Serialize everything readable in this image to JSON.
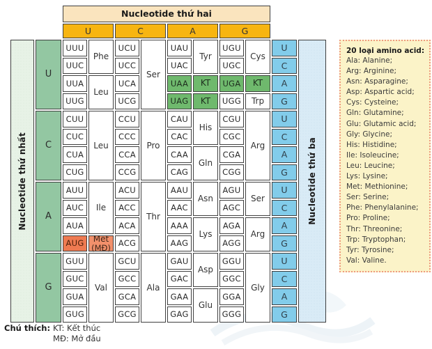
{
  "header": {
    "title": "Nucleotide thứ hai",
    "bases": [
      "U",
      "C",
      "A",
      "G"
    ]
  },
  "axis": {
    "first_label": "Nucleotide thứ nhất",
    "third_label": "Nucleotide thứ ba",
    "third_bases": [
      "U",
      "C",
      "A",
      "G"
    ]
  },
  "blocks": [
    {
      "first_base": "U",
      "groups": [
        {
          "codons": [
            {
              "t": "UUU"
            },
            {
              "t": "UUC"
            },
            {
              "t": "UUA"
            },
            {
              "t": "UUG"
            }
          ],
          "aminos": [
            {
              "label": "Phe",
              "span": 2
            },
            {
              "label": "Leu",
              "span": 2
            }
          ]
        },
        {
          "codons": [
            {
              "t": "UCU"
            },
            {
              "t": "UCC"
            },
            {
              "t": "UCA"
            },
            {
              "t": "UCG"
            }
          ],
          "aminos": [
            {
              "label": "Ser",
              "span": 4
            }
          ]
        },
        {
          "codons": [
            {
              "t": "UAU"
            },
            {
              "t": "UAC"
            },
            {
              "t": "UAA",
              "type": "stop"
            },
            {
              "t": "UAG",
              "type": "stop"
            }
          ],
          "aminos": [
            {
              "label": "Tyr",
              "span": 2
            },
            {
              "label": "KT",
              "span": 1,
              "type": "stop"
            },
            {
              "label": "KT",
              "span": 1,
              "type": "stop"
            }
          ]
        },
        {
          "codons": [
            {
              "t": "UGU"
            },
            {
              "t": "UGC"
            },
            {
              "t": "UGA",
              "type": "stop"
            },
            {
              "t": "UGG"
            }
          ],
          "aminos": [
            {
              "label": "Cys",
              "span": 2
            },
            {
              "label": "KT",
              "span": 1,
              "type": "stop"
            },
            {
              "label": "Trp",
              "span": 1
            }
          ]
        }
      ]
    },
    {
      "first_base": "C",
      "groups": [
        {
          "codons": [
            {
              "t": "CUU"
            },
            {
              "t": "CUC"
            },
            {
              "t": "CUA"
            },
            {
              "t": "CUG"
            }
          ],
          "aminos": [
            {
              "label": "Leu",
              "span": 4
            }
          ]
        },
        {
          "codons": [
            {
              "t": "CCU"
            },
            {
              "t": "CCC"
            },
            {
              "t": "CCA"
            },
            {
              "t": "CCG"
            }
          ],
          "aminos": [
            {
              "label": "Pro",
              "span": 4
            }
          ]
        },
        {
          "codons": [
            {
              "t": "CAU"
            },
            {
              "t": "CAC"
            },
            {
              "t": "CAA"
            },
            {
              "t": "CAG"
            }
          ],
          "aminos": [
            {
              "label": "His",
              "span": 2
            },
            {
              "label": "Gln",
              "span": 2
            }
          ]
        },
        {
          "codons": [
            {
              "t": "CGU"
            },
            {
              "t": "CGC"
            },
            {
              "t": "CGA"
            },
            {
              "t": "CGG"
            }
          ],
          "aminos": [
            {
              "label": "Arg",
              "span": 4
            }
          ]
        }
      ]
    },
    {
      "first_base": "A",
      "groups": [
        {
          "codons": [
            {
              "t": "AUU"
            },
            {
              "t": "AUC"
            },
            {
              "t": "AUA"
            },
            {
              "t": "AUG",
              "type": "start"
            }
          ],
          "aminos": [
            {
              "label": "Ile",
              "span": 3
            },
            {
              "label": "Met",
              "sub": "(MĐ)",
              "span": 1,
              "type": "start"
            }
          ]
        },
        {
          "codons": [
            {
              "t": "ACU"
            },
            {
              "t": "ACC"
            },
            {
              "t": "ACA"
            },
            {
              "t": "ACG"
            }
          ],
          "aminos": [
            {
              "label": "Thr",
              "span": 4
            }
          ]
        },
        {
          "codons": [
            {
              "t": "AAU"
            },
            {
              "t": "AAC"
            },
            {
              "t": "AAA"
            },
            {
              "t": "AAG"
            }
          ],
          "aminos": [
            {
              "label": "Asn",
              "span": 2
            },
            {
              "label": "Lys",
              "span": 2
            }
          ]
        },
        {
          "codons": [
            {
              "t": "AGU"
            },
            {
              "t": "AGC"
            },
            {
              "t": "AGA"
            },
            {
              "t": "AGG"
            }
          ],
          "aminos": [
            {
              "label": "Ser",
              "span": 2
            },
            {
              "label": "Arg",
              "span": 2
            }
          ]
        }
      ]
    },
    {
      "first_base": "G",
      "groups": [
        {
          "codons": [
            {
              "t": "GUU"
            },
            {
              "t": "GUC"
            },
            {
              "t": "GUA"
            },
            {
              "t": "GUG"
            }
          ],
          "aminos": [
            {
              "label": "Val",
              "span": 4
            }
          ]
        },
        {
          "codons": [
            {
              "t": "GCU"
            },
            {
              "t": "GCC"
            },
            {
              "t": "GCA"
            },
            {
              "t": "GCG"
            }
          ],
          "aminos": [
            {
              "label": "Ala",
              "span": 4
            }
          ]
        },
        {
          "codons": [
            {
              "t": "GAU"
            },
            {
              "t": "GAC"
            },
            {
              "t": "GAA"
            },
            {
              "t": "GAG"
            }
          ],
          "aminos": [
            {
              "label": "Asp",
              "span": 2
            },
            {
              "label": "Glu",
              "span": 2
            }
          ]
        },
        {
          "codons": [
            {
              "t": "GGU"
            },
            {
              "t": "GGC"
            },
            {
              "t": "GGA"
            },
            {
              "t": "GGG"
            }
          ],
          "aminos": [
            {
              "label": "Gly",
              "span": 4
            }
          ]
        }
      ]
    }
  ],
  "legend": {
    "title": "20 loại amino acid:",
    "items": [
      "Ala: Alanine;",
      "Arg: Arginine;",
      "Asn: Asparagine;",
      "Asp: Aspartic acid;",
      "Cys: Cysteine;",
      "Gln: Glutamine;",
      "Glu: Glutamic acid;",
      "Gly: Glycine;",
      "His: Histidine;",
      "Ile: Isoleucine;",
      "Leu: Leucine;",
      "Lys: Lysine;",
      "Met: Methionine;",
      "Ser: Serine;",
      "Phe: Phenylalanine;",
      "Pro: Proline;",
      "Thr: Threonine;",
      "Trp: Tryptophan;",
      "Tyr: Tyrosine;",
      "Val: Valine."
    ]
  },
  "footnote": {
    "label": "Chú thích:",
    "lines": [
      "KT: Kết thúc",
      "MĐ: Mở đầu"
    ]
  },
  "colors": {
    "header_title_bg": "#FAE4BE",
    "second_base_bg": "#F7B511",
    "first_base_bg": "#93C7A2",
    "first_outer_bg": "#E7F2E6",
    "third_base_bg": "#82CCEA",
    "third_outer_bg": "#D9EBF6",
    "stop_bg": "#6FB96D",
    "start_codon_bg": "#EE7A51",
    "start_amino_bg": "#F2906B",
    "legend_bg": "#FBF3C8",
    "legend_border": "#EE9A80",
    "cell_border": "#3F3F3F"
  }
}
